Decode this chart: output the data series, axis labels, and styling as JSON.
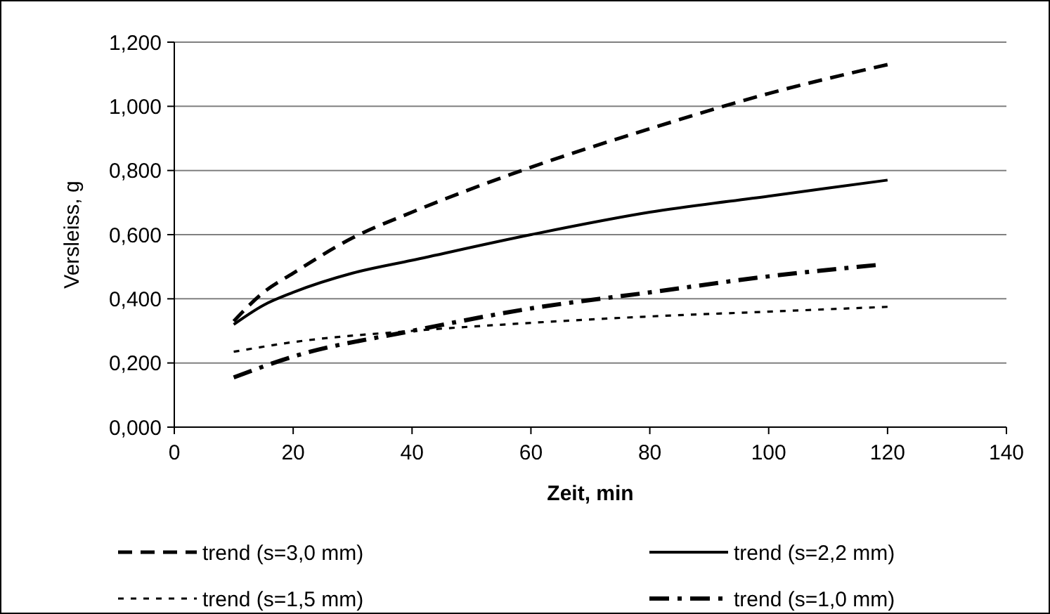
{
  "chart_data": {
    "type": "line",
    "xlabel": "Zeit, min",
    "ylabel": "Versleiss, g",
    "xlim": [
      0,
      140
    ],
    "xticks": [
      0,
      20,
      40,
      60,
      80,
      100,
      120,
      140
    ],
    "ylim": [
      0,
      1.2
    ],
    "yticks": [
      {
        "value": 0,
        "label": "0,000"
      },
      {
        "value": 0.2,
        "label": "0,200"
      },
      {
        "value": 0.4,
        "label": "0,400"
      },
      {
        "value": 0.6,
        "label": "0,600"
      },
      {
        "value": 0.8,
        "label": "0,800"
      },
      {
        "value": 1,
        "label": "1,000"
      },
      {
        "value": 1.2,
        "label": "1,200"
      }
    ],
    "grid": "y",
    "legend": "bottom",
    "marker": "none",
    "series": [
      {
        "name": "trend (s=3,0 mm)",
        "color": "#000000",
        "line_style": "dashed",
        "x": [
          10,
          15,
          20,
          30,
          40,
          60,
          80,
          100,
          120
        ],
        "values": [
          0.33,
          0.42,
          0.48,
          0.59,
          0.67,
          0.81,
          0.93,
          1.04,
          1.13
        ]
      },
      {
        "name": "trend (s=2,2 mm)",
        "color": "#000000",
        "line_style": "solid",
        "x": [
          10,
          15,
          20,
          30,
          40,
          60,
          80,
          100,
          120
        ],
        "values": [
          0.32,
          0.38,
          0.42,
          0.48,
          0.52,
          0.6,
          0.67,
          0.72,
          0.77
        ]
      },
      {
        "name": "trend (s=1,5 mm)",
        "color": "#000000",
        "line_style": "dotted",
        "x": [
          10,
          20,
          40,
          60,
          80,
          100,
          120
        ],
        "values": [
          0.235,
          0.265,
          0.3,
          0.325,
          0.345,
          0.36,
          0.375
        ]
      },
      {
        "name": "trend (s=1,0 mm)",
        "color": "#000000",
        "line_style": "dashdot",
        "x": [
          10,
          20,
          40,
          60,
          80,
          100,
          118
        ],
        "values": [
          0.155,
          0.22,
          0.3,
          0.37,
          0.42,
          0.47,
          0.505
        ]
      }
    ]
  }
}
